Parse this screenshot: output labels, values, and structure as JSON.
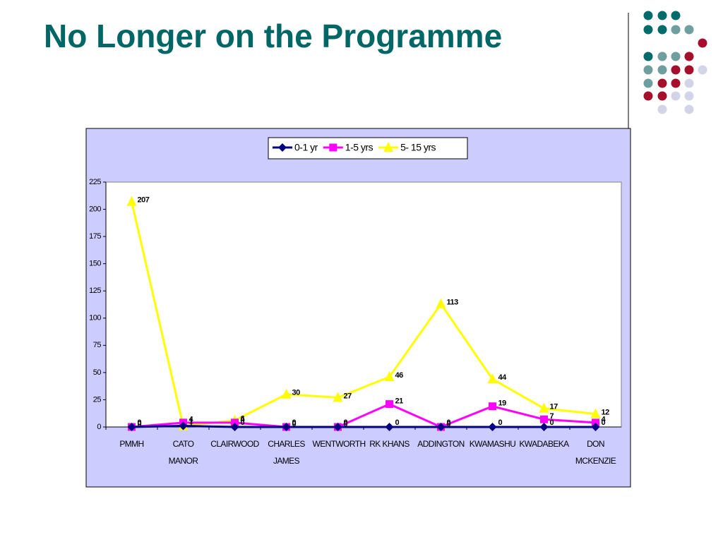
{
  "title": "No Longer on the Programme",
  "chart_data": {
    "type": "line",
    "categories": [
      "PMMH",
      "CATO MANOR",
      "CLAIRWOOD",
      "CHARLES JAMES",
      "WENTWORTH",
      "RK KHANS",
      "ADDINGTON",
      "KWAMASHU",
      "KWADABEKA",
      "DON MCKENZIE"
    ],
    "series": [
      {
        "name": "0-1 yr",
        "color": "#000080",
        "marker": "diamond",
        "values": [
          0,
          1,
          0,
          0,
          0,
          0,
          0,
          0,
          0,
          0
        ]
      },
      {
        "name": "1-5 yrs",
        "color": "#ff00ff",
        "marker": "square",
        "values": [
          0,
          4,
          4,
          0,
          0,
          21,
          0,
          19,
          7,
          4
        ]
      },
      {
        "name": "5- 15 yrs",
        "color": "#ffff00",
        "marker": "triangle",
        "values": [
          207,
          1,
          6,
          30,
          27,
          46,
          113,
          44,
          17,
          12
        ]
      }
    ],
    "ylim": [
      0,
      225
    ],
    "yticks": [
      0,
      25,
      50,
      75,
      100,
      125,
      150,
      175,
      200,
      225
    ],
    "legend": "top"
  }
}
